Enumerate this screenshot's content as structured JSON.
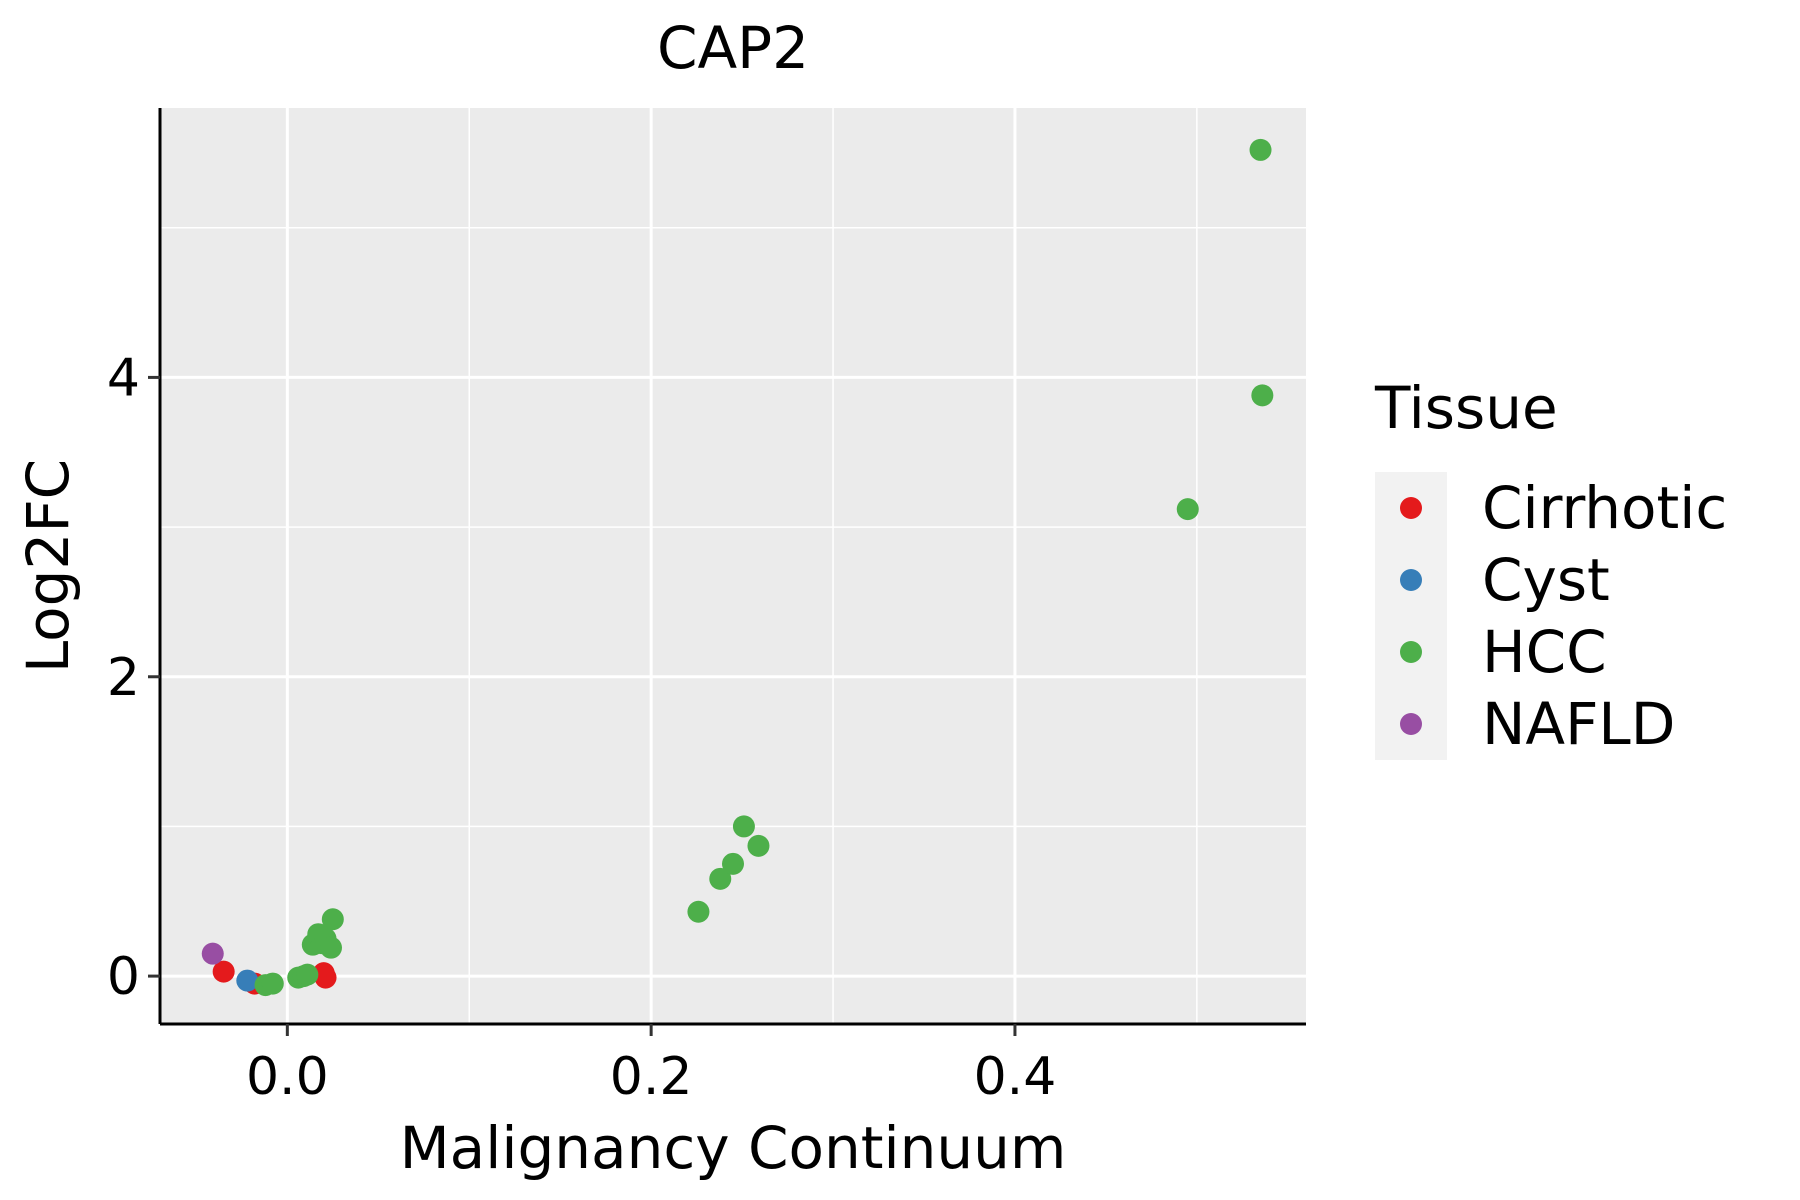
{
  "chart_data": {
    "type": "scatter",
    "title": "CAP2",
    "xlabel": "Malignancy Continuum",
    "ylabel": "Log2FC",
    "xlim": [
      -0.07,
      0.56
    ],
    "ylim": [
      -0.32,
      5.8
    ],
    "x_ticks": [
      0.0,
      0.2,
      0.4
    ],
    "x_tick_labels": [
      "0.0",
      "0.2",
      "0.4"
    ],
    "y_ticks": [
      0,
      2,
      4
    ],
    "y_tick_labels": [
      "0",
      "2",
      "4"
    ],
    "x_minor_grid": [
      -0.1,
      0.1,
      0.3,
      0.5
    ],
    "y_minor_grid": [
      1,
      3,
      5
    ],
    "grid": true,
    "legend": {
      "title": "Tissue",
      "position": "right"
    },
    "series": [
      {
        "name": "Cirrhotic",
        "color": "#E41A1C",
        "points": [
          {
            "x": -0.035,
            "y": 0.03
          },
          {
            "x": -0.018,
            "y": -0.05
          },
          {
            "x": 0.02,
            "y": 0.02
          },
          {
            "x": 0.021,
            "y": -0.01
          }
        ]
      },
      {
        "name": "Cyst",
        "color": "#377EB8",
        "points": [
          {
            "x": -0.022,
            "y": -0.03
          }
        ]
      },
      {
        "name": "HCC",
        "color": "#4DAF4A",
        "points": [
          {
            "x": -0.012,
            "y": -0.06
          },
          {
            "x": -0.008,
            "y": -0.05
          },
          {
            "x": 0.006,
            "y": -0.01
          },
          {
            "x": 0.009,
            "y": 0.0
          },
          {
            "x": 0.011,
            "y": 0.01
          },
          {
            "x": 0.014,
            "y": 0.21
          },
          {
            "x": 0.017,
            "y": 0.28
          },
          {
            "x": 0.019,
            "y": 0.22
          },
          {
            "x": 0.021,
            "y": 0.25
          },
          {
            "x": 0.024,
            "y": 0.19
          },
          {
            "x": 0.025,
            "y": 0.38
          },
          {
            "x": 0.226,
            "y": 0.43
          },
          {
            "x": 0.238,
            "y": 0.65
          },
          {
            "x": 0.245,
            "y": 0.75
          },
          {
            "x": 0.251,
            "y": 1.0
          },
          {
            "x": 0.259,
            "y": 0.87
          },
          {
            "x": 0.495,
            "y": 3.12
          },
          {
            "x": 0.535,
            "y": 5.52
          },
          {
            "x": 0.536,
            "y": 3.88
          }
        ]
      },
      {
        "name": "NAFLD",
        "color": "#984EA3",
        "points": [
          {
            "x": -0.041,
            "y": 0.15
          }
        ]
      }
    ]
  }
}
